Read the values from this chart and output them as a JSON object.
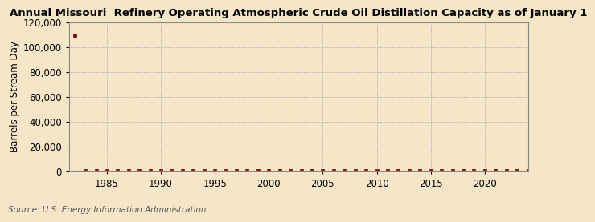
{
  "title": "Annual Missouri  Refinery Operating Atmospheric Crude Oil Distillation Capacity as of January 1",
  "ylabel": "Barrels per Stream Day",
  "source": "Source: U.S. Energy Information Administration",
  "background_color": "#f5e6c8",
  "plot_bg_color": "#f5e6c8",
  "marker_color": "#8b0000",
  "grid_color": "#aaaaaa",
  "ylim": [
    0,
    120000
  ],
  "yticks": [
    0,
    20000,
    40000,
    60000,
    80000,
    100000,
    120000
  ],
  "xlim": [
    1981.5,
    2024
  ],
  "xticks": [
    1985,
    1990,
    1995,
    2000,
    2005,
    2010,
    2015,
    2020
  ],
  "years": [
    1982,
    1983,
    1984,
    1985,
    1986,
    1987,
    1988,
    1989,
    1990,
    1991,
    1992,
    1993,
    1994,
    1995,
    1996,
    1997,
    1998,
    1999,
    2000,
    2001,
    2002,
    2003,
    2004,
    2005,
    2006,
    2007,
    2008,
    2009,
    2010,
    2011,
    2012,
    2013,
    2014,
    2015,
    2016,
    2017,
    2018,
    2019,
    2020,
    2021,
    2022,
    2023,
    2024
  ],
  "values": [
    110000,
    0,
    0,
    0,
    0,
    0,
    0,
    0,
    0,
    0,
    0,
    0,
    0,
    0,
    0,
    0,
    0,
    0,
    0,
    0,
    0,
    0,
    0,
    0,
    0,
    0,
    0,
    0,
    0,
    0,
    0,
    0,
    0,
    0,
    0,
    0,
    0,
    0,
    0,
    0,
    0,
    0,
    0
  ],
  "title_fontsize": 9.5,
  "ylabel_fontsize": 8.5,
  "tick_fontsize": 8.5,
  "source_fontsize": 7.5
}
